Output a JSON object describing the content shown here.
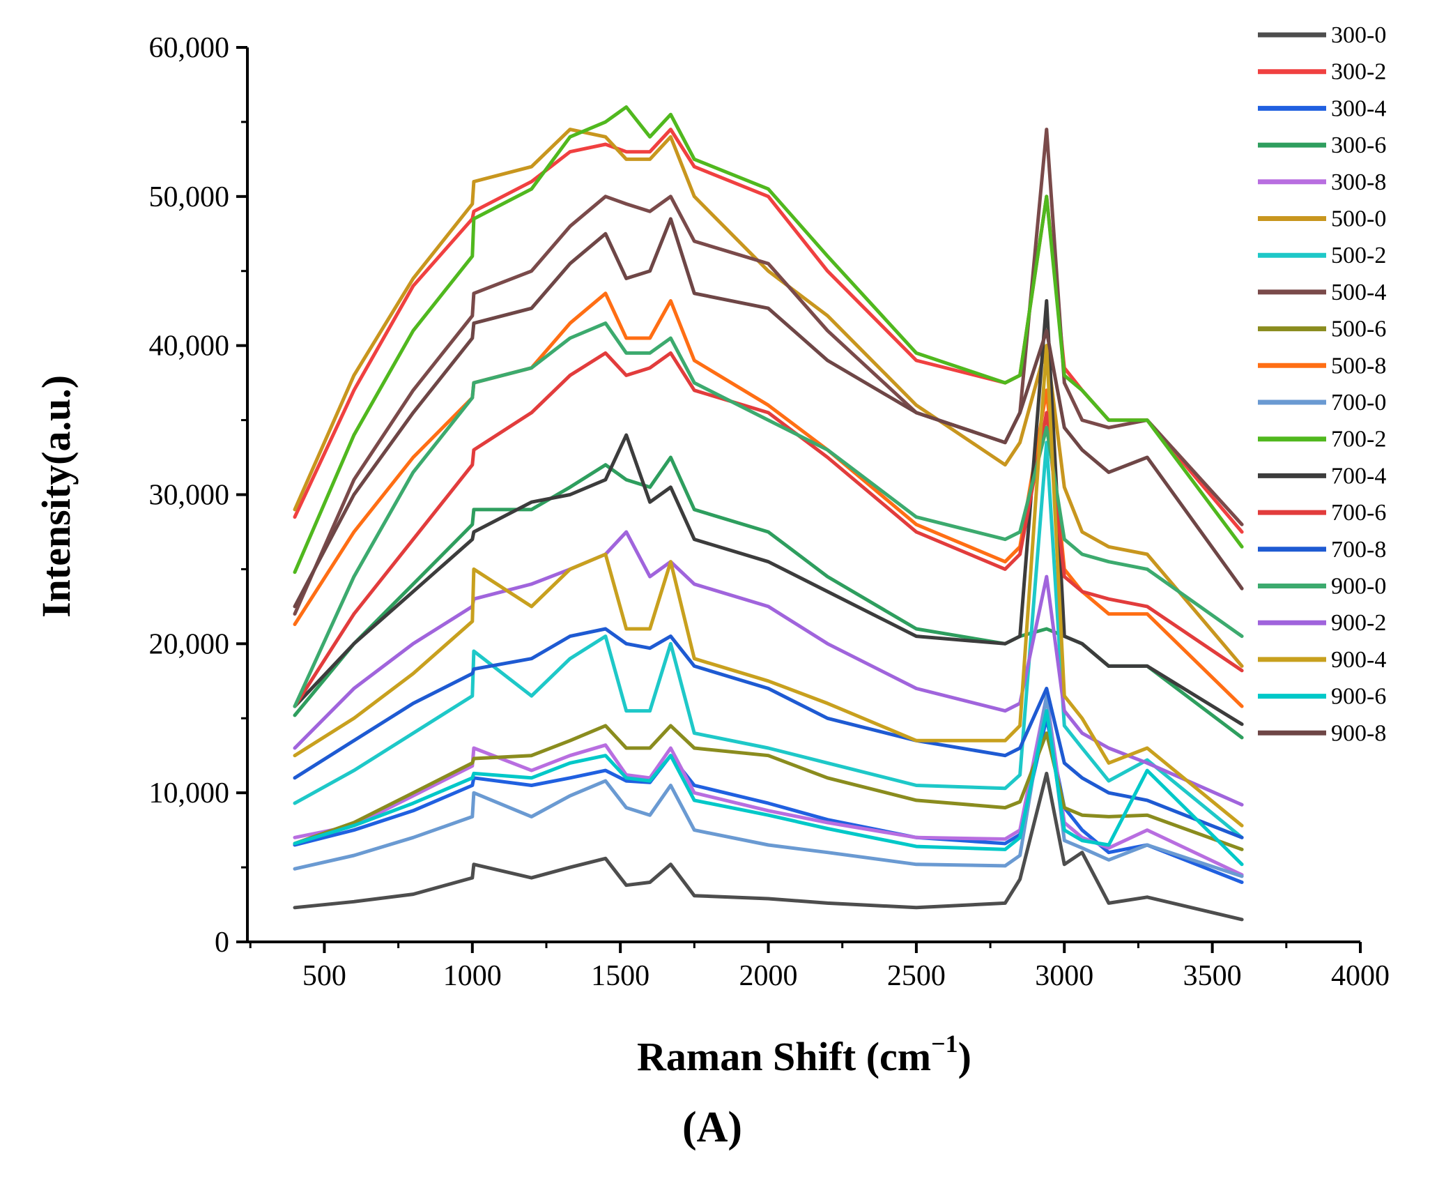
{
  "chart_data": {
    "type": "line",
    "title": "",
    "xlabel_main": "Raman Shift (cm",
    "xlabel_sup": "−1",
    "xlabel_close": ")",
    "ylabel": "Intensity(a.u.)",
    "panel_label": "(A)",
    "xlim": [
      240,
      4000
    ],
    "ylim": [
      0,
      60000
    ],
    "x_ticks": [
      500,
      1000,
      1500,
      2000,
      2500,
      3000,
      3500,
      4000
    ],
    "x_tick_labels": [
      "500",
      "1000",
      "1500",
      "2000",
      "2500",
      "3000",
      "3500",
      "4000"
    ],
    "y_ticks": [
      0,
      10000,
      20000,
      30000,
      40000,
      50000,
      60000
    ],
    "y_tick_labels": [
      "0",
      "10,000",
      "20,000",
      "30,000",
      "40,000",
      "50,000",
      "60,000"
    ],
    "legend_position": "right",
    "x": [
      400,
      600,
      800,
      1000,
      1005,
      1200,
      1330,
      1450,
      1520,
      1600,
      1670,
      1750,
      2000,
      2200,
      2500,
      2800,
      2850,
      2940,
      3000,
      3060,
      3150,
      3280,
      3600
    ],
    "series": [
      {
        "name": "300-0",
        "color": "#4d4d4d",
        "values": [
          2300,
          2700,
          3200,
          4300,
          5200,
          4300,
          5000,
          5600,
          3800,
          4000,
          5200,
          3100,
          2900,
          2600,
          2300,
          2600,
          4200,
          11300,
          5200,
          6000,
          2600,
          3000,
          1500
        ]
      },
      {
        "name": "300-2",
        "color": "#f04040",
        "values": [
          28500,
          37000,
          44000,
          48500,
          49000,
          51000,
          53000,
          53500,
          53000,
          53000,
          54500,
          52000,
          50000,
          45000,
          39000,
          37500,
          38000,
          50000,
          38500,
          37000,
          35000,
          35000,
          27500
        ]
      },
      {
        "name": "300-4",
        "color": "#2060e0",
        "values": [
          6500,
          7500,
          8800,
          10500,
          11000,
          10500,
          11000,
          11500,
          10800,
          10700,
          12500,
          10500,
          9300,
          8200,
          7000,
          6600,
          7200,
          15000,
          9000,
          7500,
          6000,
          6500,
          4000
        ]
      },
      {
        "name": "300-6",
        "color": "#2e9e5e",
        "values": [
          15200,
          20000,
          24000,
          28000,
          29000,
          29000,
          30500,
          32000,
          31000,
          30500,
          32500,
          29000,
          27500,
          24500,
          21000,
          20000,
          20500,
          21000,
          20500,
          20000,
          18500,
          18500,
          13700
        ]
      },
      {
        "name": "300-8",
        "color": "#b86ee0",
        "values": [
          7000,
          7800,
          9800,
          11800,
          13000,
          11500,
          12500,
          13200,
          11200,
          11000,
          13000,
          10000,
          8800,
          8000,
          7000,
          6900,
          7500,
          16500,
          8000,
          7000,
          6300,
          7500,
          4500
        ]
      },
      {
        "name": "500-0",
        "color": "#c8961e",
        "values": [
          29000,
          38000,
          44500,
          49500,
          51000,
          52000,
          54500,
          54000,
          52500,
          52500,
          54000,
          50000,
          45000,
          42000,
          36000,
          32000,
          33500,
          40000,
          30500,
          27500,
          26500,
          26000,
          18500
        ]
      },
      {
        "name": "500-2",
        "color": "#1ec8c8",
        "values": [
          9300,
          11500,
          14000,
          16500,
          19500,
          16500,
          19000,
          20500,
          15500,
          15500,
          20000,
          14000,
          13000,
          12000,
          10500,
          10300,
          11200,
          33500,
          14500,
          13000,
          10800,
          12200,
          7000
        ]
      },
      {
        "name": "500-4",
        "color": "#7a4a4a",
        "values": [
          22000,
          31000,
          37000,
          42000,
          43500,
          45000,
          48000,
          50000,
          49500,
          49000,
          50000,
          47000,
          45500,
          41000,
          35500,
          33500,
          35500,
          54500,
          37500,
          35000,
          34500,
          35000,
          28000
        ]
      },
      {
        "name": "500-6",
        "color": "#8a8c1e",
        "values": [
          6600,
          8000,
          10000,
          12000,
          12300,
          12500,
          13500,
          14500,
          13000,
          13000,
          14500,
          13000,
          12500,
          11000,
          9500,
          9000,
          9400,
          14000,
          9000,
          8500,
          8400,
          8500,
          6200
        ]
      },
      {
        "name": "500-8",
        "color": "#ff6e14",
        "values": [
          21300,
          27500,
          32500,
          36500,
          37500,
          38500,
          41500,
          43500,
          40500,
          40500,
          43000,
          39000,
          36000,
          33000,
          28000,
          25500,
          26500,
          37000,
          25000,
          23500,
          22000,
          22000,
          15800
        ]
      },
      {
        "name": "700-0",
        "color": "#6a9ad2",
        "values": [
          4900,
          5800,
          7000,
          8400,
          10000,
          8400,
          9800,
          10800,
          9000,
          8500,
          10500,
          7500,
          6500,
          6000,
          5200,
          5100,
          5800,
          16500,
          6800,
          6300,
          5500,
          6500,
          4400
        ]
      },
      {
        "name": "700-2",
        "color": "#50b81e",
        "values": [
          24800,
          34000,
          41000,
          46000,
          48500,
          50500,
          54000,
          55000,
          56000,
          54000,
          55500,
          52500,
          50500,
          46000,
          39500,
          37500,
          38000,
          50000,
          38000,
          37000,
          35000,
          35000,
          26500
        ]
      },
      {
        "name": "700-4",
        "color": "#3c3c3c",
        "values": [
          15800,
          20000,
          23500,
          27000,
          27500,
          29500,
          30000,
          31000,
          34000,
          29500,
          30500,
          27000,
          25500,
          23500,
          20500,
          20000,
          20500,
          43000,
          20500,
          20000,
          18500,
          18500,
          14600
        ]
      },
      {
        "name": "700-6",
        "color": "#e23c3c",
        "values": [
          15800,
          22000,
          27000,
          32000,
          33000,
          35500,
          38000,
          39500,
          38000,
          38500,
          39500,
          37000,
          35500,
          32500,
          27500,
          25000,
          26000,
          35500,
          24500,
          23500,
          23000,
          22500,
          18200
        ]
      },
      {
        "name": "700-8",
        "color": "#1e5ad2",
        "values": [
          11000,
          13500,
          16000,
          18000,
          18300,
          19000,
          20500,
          21000,
          20000,
          19700,
          20500,
          18500,
          17000,
          15000,
          13500,
          12500,
          13000,
          17000,
          12000,
          11000,
          10000,
          9500,
          7000
        ]
      },
      {
        "name": "900-0",
        "color": "#3caa6e",
        "values": [
          15800,
          24500,
          31500,
          36500,
          37500,
          38500,
          40500,
          41500,
          39500,
          39500,
          40500,
          37500,
          35000,
          33000,
          28500,
          27000,
          27500,
          34500,
          27000,
          26000,
          25500,
          25000,
          20500
        ]
      },
      {
        "name": "900-2",
        "color": "#a064dc",
        "values": [
          13000,
          17000,
          20000,
          22500,
          23000,
          24000,
          25000,
          26000,
          27500,
          24500,
          25500,
          24000,
          22500,
          20000,
          17000,
          15500,
          16000,
          24500,
          15500,
          14000,
          13000,
          12000,
          9200
        ]
      },
      {
        "name": "900-4",
        "color": "#c8a01e",
        "values": [
          12500,
          15000,
          18000,
          21500,
          25000,
          22500,
          25000,
          26000,
          21000,
          21000,
          25500,
          19000,
          17500,
          16000,
          13500,
          13500,
          14500,
          40000,
          16500,
          15000,
          12000,
          13000,
          7800
        ]
      },
      {
        "name": "900-6",
        "color": "#00c8c8",
        "values": [
          6600,
          7800,
          9300,
          11000,
          11300,
          11000,
          12000,
          12500,
          11000,
          10800,
          12500,
          9500,
          8500,
          7600,
          6400,
          6200,
          7000,
          15500,
          7500,
          6800,
          6500,
          11500,
          5200
        ]
      },
      {
        "name": "900-8",
        "color": "#6e4646",
        "values": [
          22500,
          30000,
          35500,
          40500,
          41500,
          42500,
          45500,
          47500,
          44500,
          45000,
          48500,
          43500,
          42500,
          39000,
          35500,
          33500,
          35500,
          41000,
          34500,
          33000,
          31500,
          32500,
          23700
        ]
      }
    ]
  }
}
